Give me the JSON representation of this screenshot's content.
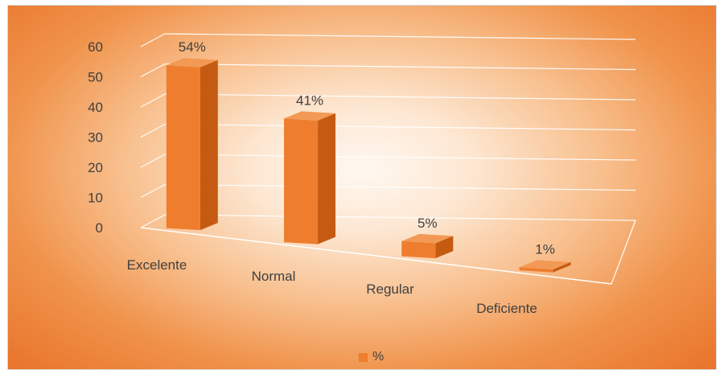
{
  "chart_data": {
    "type": "bar",
    "categories": [
      "Excelente",
      "Normal",
      "Regular",
      "Deficiente"
    ],
    "series": [
      {
        "name": "%",
        "values": [
          54,
          41,
          5,
          1
        ],
        "labels": [
          "54%",
          "41%",
          "5%",
          "1%"
        ]
      }
    ],
    "y_ticks": [
      "0",
      "10",
      "20",
      "30",
      "40",
      "50",
      "60"
    ],
    "ylim": [
      0,
      60
    ],
    "title": "",
    "xlabel": "",
    "ylabel": "",
    "grid": true,
    "three_d": true,
    "legend_position": "bottom",
    "colors": {
      "bar_front": "#ee7d2e",
      "bar_side": "#c55b12",
      "bar_top": "#f29a55",
      "gridline": "#ffffff",
      "text": "#404040",
      "legend_swatch": "#ee7d2e"
    }
  }
}
